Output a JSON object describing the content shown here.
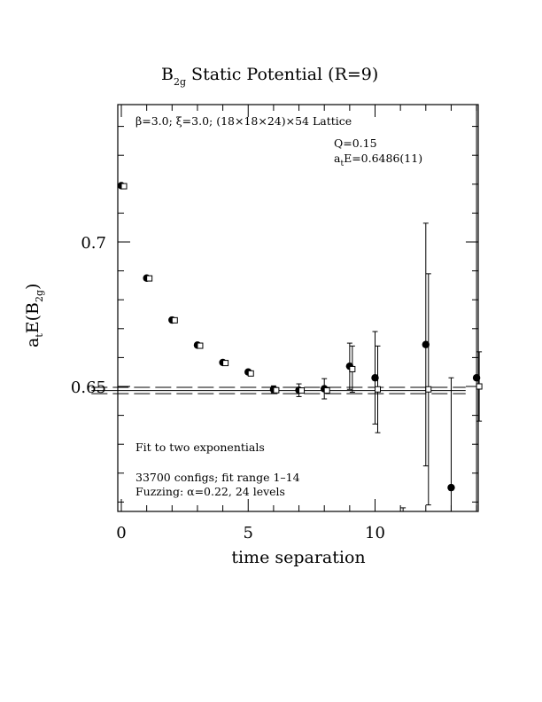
{
  "chart_data": {
    "type": "scatter",
    "title": {
      "main": "B",
      "sub": "2g",
      "rest": " Static Potential (R=9)"
    },
    "xlabel": "time separation",
    "ylabel": {
      "a": "a",
      "a_sub": "t",
      "mid": "E(B",
      "sub": "2g",
      "end": ")"
    },
    "xlim": [
      -0.2,
      14
    ],
    "ylim": [
      0.607,
      0.749
    ],
    "x_ticks": [
      0,
      5,
      10
    ],
    "x_tick_labels": [
      "0",
      "5",
      "10"
    ],
    "y_ticks": [
      0.65,
      0.7
    ],
    "y_tick_labels": [
      "0.65",
      "0.7"
    ],
    "annotations": {
      "lattice": {
        "beta": "β",
        "beta_val": "=3.0; ",
        "xi": "ξ",
        "xi_val": "=3.0; (18×18×24)×54 Lattice"
      },
      "q": "Q=0.15",
      "energy": {
        "a": "a",
        "sub": "t",
        "rest": "E=0.6486(11)"
      },
      "fit": "Fit to two exponentials",
      "configs": "33700 configs; fit range 1–14",
      "fuzzing": "Fuzzing: α=0.22, 24 levels"
    },
    "series": [
      {
        "marker": "filled-circle",
        "points": [
          {
            "x": 0,
            "y": 0.7195,
            "err": 0.0003
          },
          {
            "x": 1,
            "y": 0.6875,
            "err": 0.0004
          },
          {
            "x": 2,
            "y": 0.673,
            "err": 0.0004
          },
          {
            "x": 3,
            "y": 0.6643,
            "err": 0.0005
          },
          {
            "x": 4,
            "y": 0.6583,
            "err": 0.0006
          },
          {
            "x": 5,
            "y": 0.655,
            "err": 0.0007
          },
          {
            "x": 6,
            "y": 0.649,
            "err": 0.0012
          },
          {
            "x": 7,
            "y": 0.6487,
            "err": 0.0022
          },
          {
            "x": 8,
            "y": 0.6492,
            "err": 0.0035
          },
          {
            "x": 9,
            "y": 0.657,
            "err": 0.008
          },
          {
            "x": 10,
            "y": 0.653,
            "err": 0.016
          },
          {
            "x": 12,
            "y": 0.6645,
            "err": 0.042
          },
          {
            "x": 13,
            "y": 0.615,
            "err": 0.038
          },
          {
            "x": 14,
            "y": 0.653,
            "err": 0.095
          }
        ]
      },
      {
        "marker": "open-square",
        "points": [
          {
            "x": 0,
            "y": 0.7193
          },
          {
            "x": 1,
            "y": 0.6874
          },
          {
            "x": 2,
            "y": 0.6729
          },
          {
            "x": 3,
            "y": 0.6641
          },
          {
            "x": 4,
            "y": 0.6581
          },
          {
            "x": 5,
            "y": 0.6545
          },
          {
            "x": 6,
            "y": 0.6487
          },
          {
            "x": 7,
            "y": 0.6486
          },
          {
            "x": 8,
            "y": 0.6486
          },
          {
            "x": 9,
            "y": 0.656,
            "err": 0.008
          },
          {
            "x": 10,
            "y": 0.649,
            "err": 0.015
          },
          {
            "x": 11,
            "y": 0.6,
            "err": 0.008
          },
          {
            "x": 12,
            "y": 0.649,
            "err": 0.04
          },
          {
            "x": 14,
            "y": 0.65,
            "err": 0.012
          }
        ]
      }
    ],
    "fit": {
      "value": 0.6486,
      "error": 0.0011,
      "x_range": [
        0.5,
        13.5
      ]
    }
  }
}
